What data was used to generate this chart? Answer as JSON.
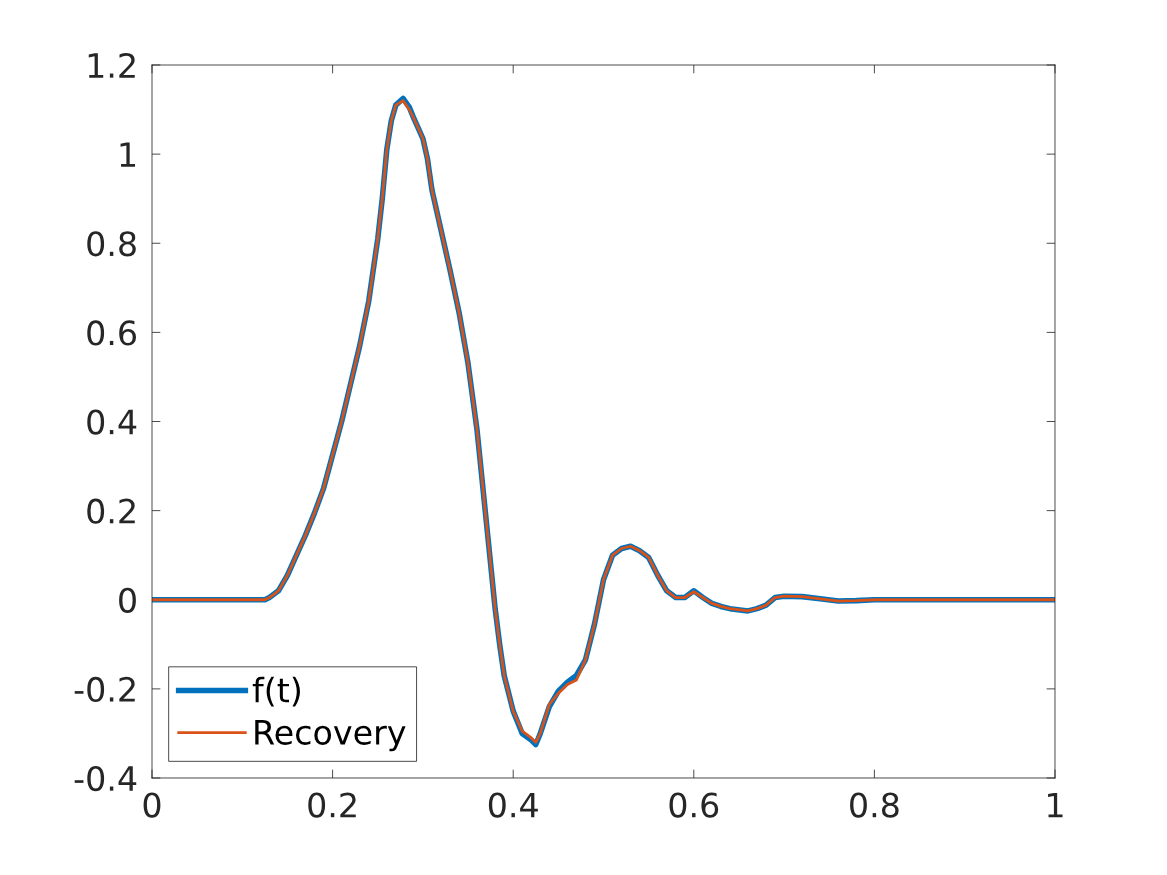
{
  "chart_data": {
    "type": "line",
    "x": [
      0,
      0.05,
      0.1,
      0.125,
      0.13,
      0.14,
      0.15,
      0.16,
      0.17,
      0.18,
      0.19,
      0.2,
      0.21,
      0.22,
      0.23,
      0.24,
      0.25,
      0.255,
      0.26,
      0.265,
      0.27,
      0.278,
      0.285,
      0.29,
      0.3,
      0.305,
      0.31,
      0.32,
      0.33,
      0.34,
      0.35,
      0.36,
      0.37,
      0.38,
      0.385,
      0.39,
      0.4,
      0.41,
      0.42,
      0.425,
      0.43,
      0.44,
      0.45,
      0.46,
      0.47,
      0.48,
      0.49,
      0.5,
      0.51,
      0.52,
      0.53,
      0.54,
      0.55,
      0.56,
      0.57,
      0.58,
      0.59,
      0.6,
      0.61,
      0.62,
      0.63,
      0.64,
      0.66,
      0.67,
      0.68,
      0.69,
      0.7,
      0.72,
      0.74,
      0.76,
      0.78,
      0.8,
      0.9,
      1.0
    ],
    "series": [
      {
        "name": "f(t)",
        "color": "#0072bd",
        "values": [
          0,
          0,
          0,
          0,
          0.005,
          0.02,
          0.055,
          0.1,
          0.145,
          0.195,
          0.25,
          0.325,
          0.4,
          0.485,
          0.57,
          0.67,
          0.81,
          0.9,
          1.01,
          1.075,
          1.11,
          1.125,
          1.105,
          1.08,
          1.035,
          0.99,
          0.92,
          0.83,
          0.74,
          0.645,
          0.53,
          0.38,
          0.18,
          -0.02,
          -0.1,
          -0.17,
          -0.25,
          -0.3,
          -0.315,
          -0.325,
          -0.3,
          -0.24,
          -0.205,
          -0.185,
          -0.17,
          -0.135,
          -0.055,
          0.045,
          0.1,
          0.115,
          0.12,
          0.11,
          0.095,
          0.055,
          0.02,
          0.005,
          0.005,
          0.02,
          0.005,
          -0.008,
          -0.015,
          -0.02,
          -0.025,
          -0.02,
          -0.012,
          0.005,
          0.008,
          0.007,
          0.002,
          -0.003,
          -0.002,
          0,
          0,
          0
        ]
      },
      {
        "name": "Recovery",
        "color": "#d95319",
        "values": [
          0,
          0,
          0,
          0,
          0.005,
          0.02,
          0.055,
          0.1,
          0.145,
          0.195,
          0.25,
          0.325,
          0.4,
          0.485,
          0.57,
          0.67,
          0.81,
          0.9,
          1.01,
          1.075,
          1.11,
          1.12,
          1.1,
          1.08,
          1.035,
          0.99,
          0.92,
          0.83,
          0.74,
          0.645,
          0.53,
          0.38,
          0.18,
          -0.02,
          -0.1,
          -0.17,
          -0.25,
          -0.295,
          -0.31,
          -0.32,
          -0.3,
          -0.235,
          -0.21,
          -0.19,
          -0.18,
          -0.135,
          -0.055,
          0.045,
          0.1,
          0.115,
          0.12,
          0.11,
          0.095,
          0.055,
          0.02,
          0.005,
          0.005,
          0.018,
          0.005,
          -0.008,
          -0.015,
          -0.02,
          -0.025,
          -0.02,
          -0.012,
          0.005,
          0.008,
          0.007,
          0.002,
          -0.003,
          -0.002,
          0,
          0,
          0
        ]
      }
    ],
    "xlim": [
      0,
      1
    ],
    "xticks": [
      0,
      0.2,
      0.4,
      0.6,
      0.8,
      1
    ],
    "ylim": [
      -0.4,
      1.2
    ],
    "yticks": [
      -0.4,
      -0.2,
      0,
      0.2,
      0.4,
      0.6,
      0.8,
      1,
      1.2
    ],
    "legend": "bottom left",
    "grid": false,
    "line_style": "solid",
    "marker": "none"
  }
}
